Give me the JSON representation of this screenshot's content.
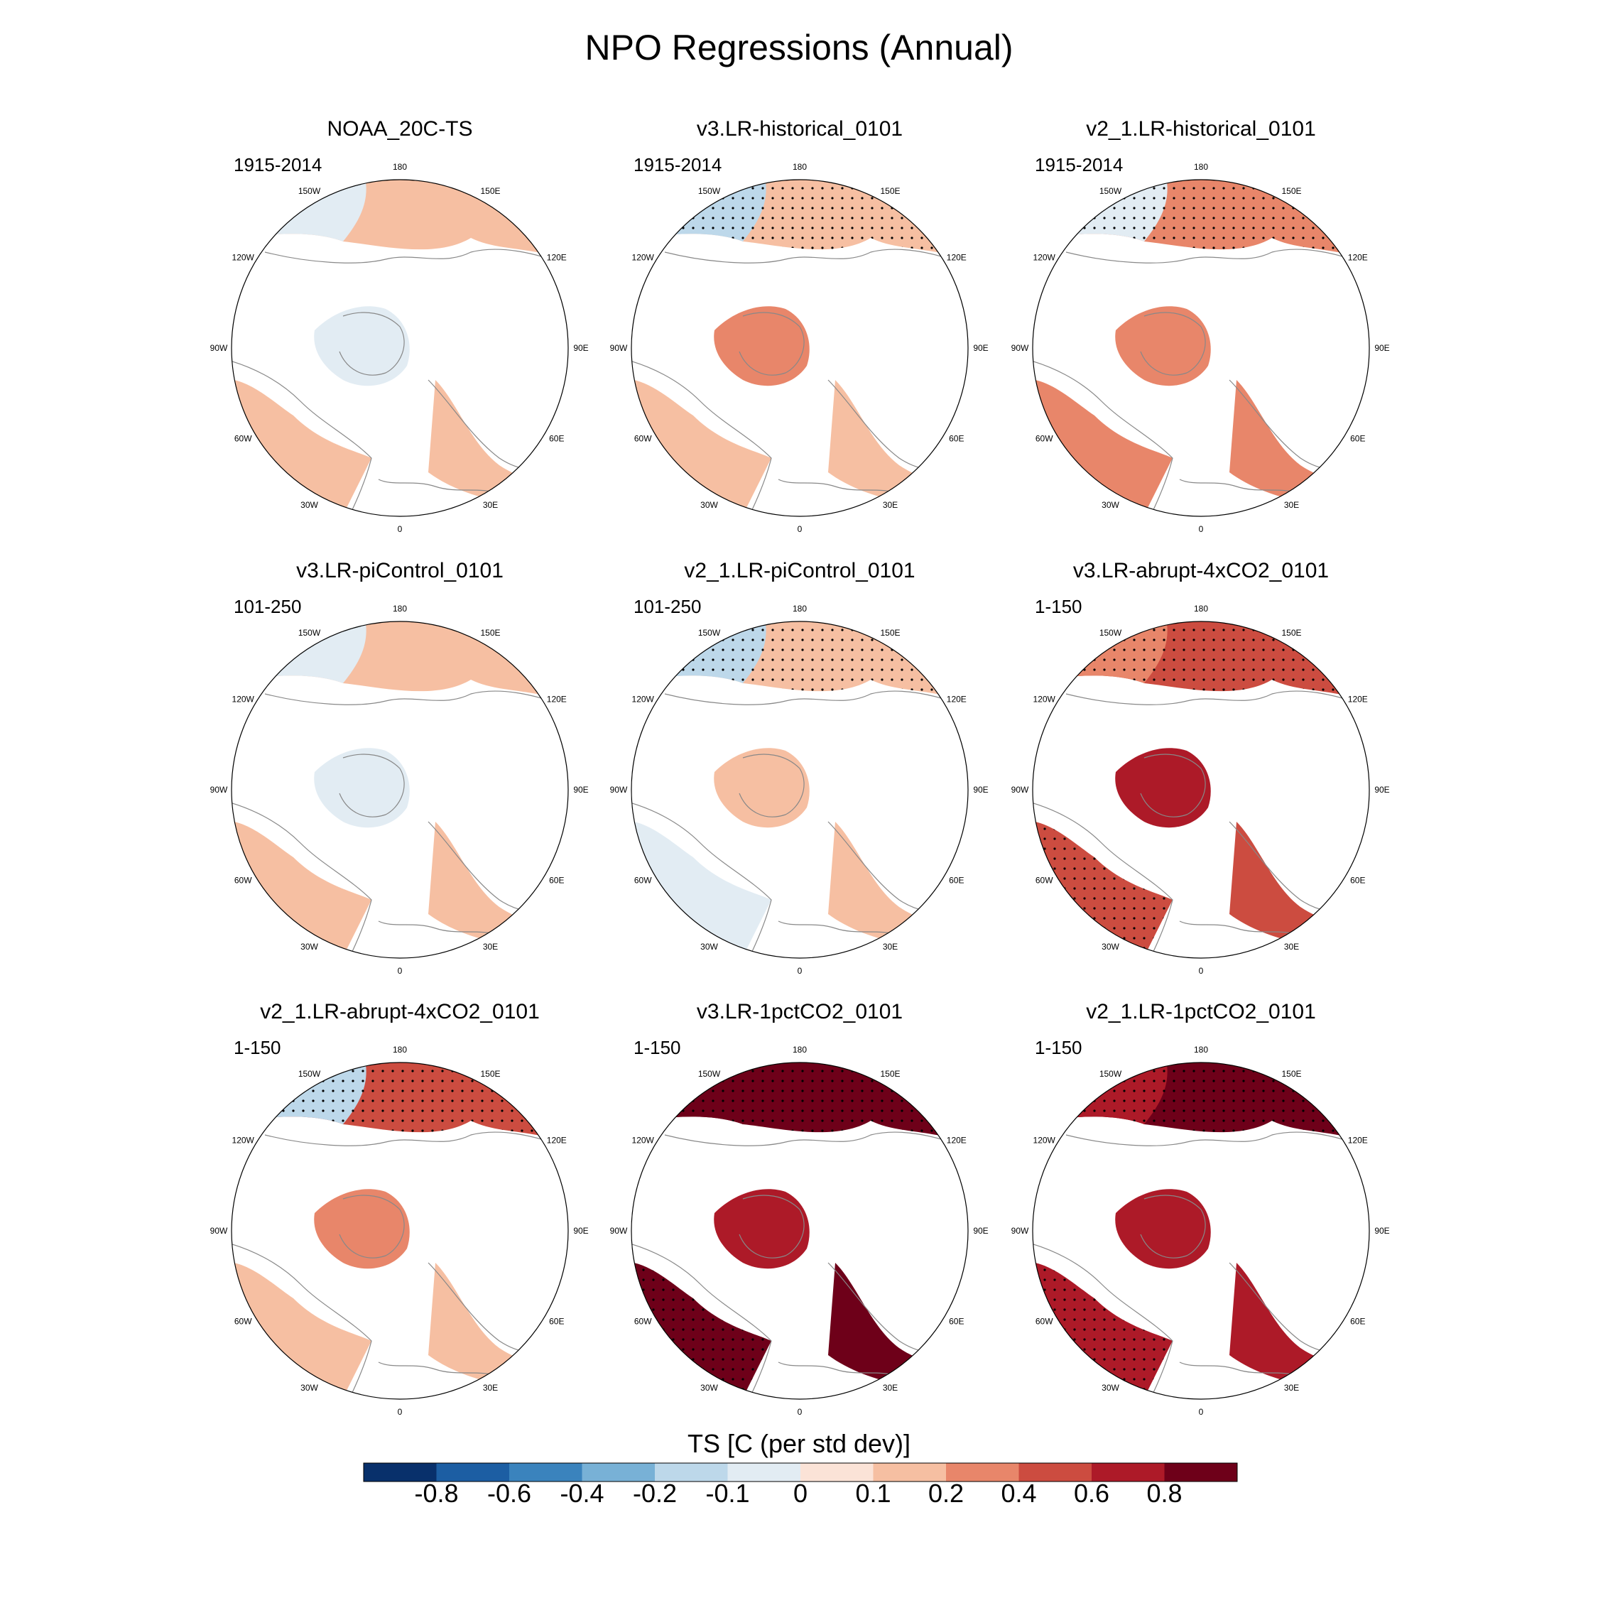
{
  "figure": {
    "title": "NPO Regressions (Annual)"
  },
  "longitude_labels": {
    "n180": "180",
    "e150": "150E",
    "e120": "120E",
    "e90": "90E",
    "e60": "60E",
    "e30": "30E",
    "n0": "0",
    "w30": "30W",
    "w60": "60W",
    "w90": "90W",
    "w120": "120W",
    "w150": "150W"
  },
  "panels": [
    {
      "title": "NOAA_20C-TS",
      "period": "1915-2014",
      "pacific_west": -0.1,
      "pacific_north": 0.1,
      "atlantic": 0.1,
      "arctic": -0.1,
      "land": 0.1
    },
    {
      "title": "v3.LR-historical_0101",
      "period": "1915-2014",
      "pacific_west": -0.2,
      "pacific_north": 0.1,
      "atlantic": 0.1,
      "arctic": 0.2,
      "land": 0.1
    },
    {
      "title": "v2_1.LR-historical_0101",
      "period": "1915-2014",
      "pacific_west": -0.1,
      "pacific_north": 0.2,
      "atlantic": 0.2,
      "arctic": 0.2,
      "land": 0.2
    },
    {
      "title": "v3.LR-piControl_0101",
      "period": "101-250",
      "pacific_west": -0.1,
      "pacific_north": 0.1,
      "atlantic": 0.1,
      "arctic": -0.1,
      "land": 0.1
    },
    {
      "title": "v2_1.LR-piControl_0101",
      "period": "101-250",
      "pacific_west": -0.2,
      "pacific_north": 0.1,
      "atlantic": -0.1,
      "arctic": 0.1,
      "land": 0.1
    },
    {
      "title": "v3.LR-abrupt-4xCO2_0101",
      "period": "1-150",
      "pacific_west": 0.2,
      "pacific_north": 0.4,
      "atlantic": 0.4,
      "arctic": 0.6,
      "land": 0.4
    },
    {
      "title": "v2_1.LR-abrupt-4xCO2_0101",
      "period": "1-150",
      "pacific_west": -0.2,
      "pacific_north": 0.4,
      "atlantic": 0.1,
      "arctic": 0.2,
      "land": 0.1
    },
    {
      "title": "v3.LR-1pctCO2_0101",
      "period": "1-150",
      "pacific_west": 0.8,
      "pacific_north": 0.8,
      "atlantic": 0.8,
      "arctic": 0.6,
      "land": 0.8
    },
    {
      "title": "v2_1.LR-1pctCO2_0101",
      "period": "1-150",
      "pacific_west": 0.6,
      "pacific_north": 0.8,
      "atlantic": 0.6,
      "arctic": 0.6,
      "land": 0.6
    }
  ],
  "colorbar": {
    "title": "TS [C (per std dev)]",
    "tick_labels": [
      "-0.8",
      "-0.6",
      "-0.4",
      "-0.2",
      "-0.1",
      "0",
      "0.1",
      "0.2",
      "0.4",
      "0.6",
      "0.8"
    ],
    "colors": [
      "#08306b",
      "#1c5ea3",
      "#3a83bd",
      "#78b1d6",
      "#bdd8ea",
      "#e2ecf3",
      "#fbe3d7",
      "#f6bfa2",
      "#e8866a",
      "#cc4c40",
      "#ad1a28",
      "#6e0019"
    ]
  }
}
